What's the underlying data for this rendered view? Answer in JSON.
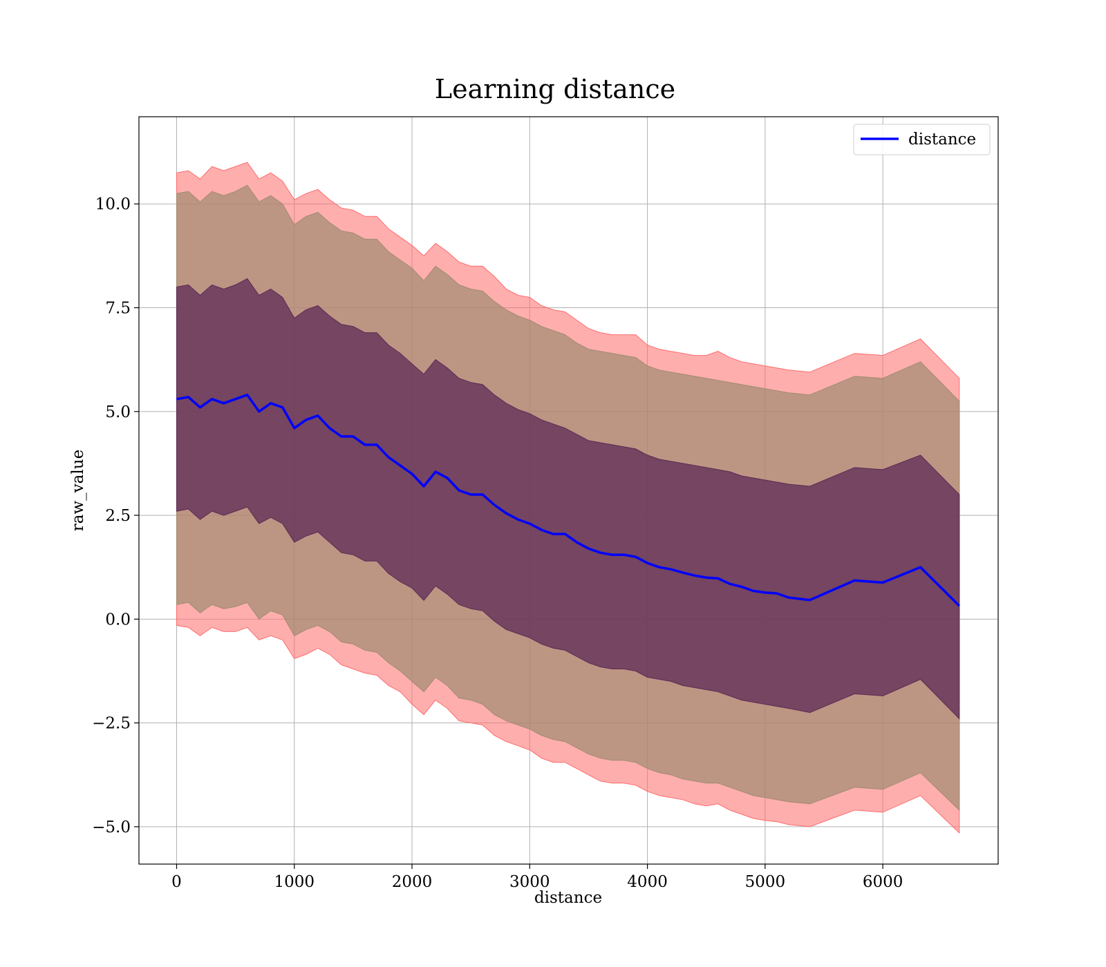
{
  "chart_data": {
    "type": "line",
    "title": "Learning distance",
    "xlabel": "distance",
    "ylabel": "raw_value",
    "xlim": [
      -320,
      6980
    ],
    "ylim": [
      -5.9,
      12.1
    ],
    "x_ticks": [
      0,
      1000,
      2000,
      3000,
      4000,
      5000,
      6000
    ],
    "x_tick_labels": [
      "0",
      "1000",
      "2000",
      "3000",
      "4000",
      "5000",
      "6000"
    ],
    "y_ticks": [
      -5.0,
      -2.5,
      0.0,
      2.5,
      5.0,
      7.5,
      10.0
    ],
    "y_tick_labels": [
      "−5.0",
      "−2.5",
      "0.0",
      "2.5",
      "5.0",
      "7.5",
      "10.0"
    ],
    "grid": true,
    "legend_position": "top-right",
    "colors": {
      "line": "#0000ff",
      "outer_band": "#ff6b6b",
      "middle_band": "#a08b70",
      "inner_band": "#5e2a56",
      "grid": "#b0b0b0"
    },
    "series": [
      {
        "name": "distance",
        "x": [
          0,
          100,
          200,
          300,
          400,
          500,
          600,
          700,
          800,
          900,
          1000,
          1100,
          1200,
          1300,
          1400,
          1500,
          1600,
          1700,
          1800,
          1900,
          2000,
          2100,
          2200,
          2300,
          2400,
          2500,
          2600,
          2700,
          2800,
          2900,
          3000,
          3100,
          3200,
          3300,
          3400,
          3500,
          3600,
          3700,
          3800,
          3900,
          4000,
          4100,
          4200,
          4300,
          4400,
          4500,
          4600,
          4700,
          4800,
          4900,
          5000,
          5100,
          5200,
          5380,
          5760,
          6000,
          6320,
          6650
        ],
        "values": [
          5.3,
          5.35,
          5.1,
          5.3,
          5.2,
          5.3,
          5.4,
          5.0,
          5.2,
          5.1,
          4.6,
          4.8,
          4.9,
          4.6,
          4.4,
          4.4,
          4.2,
          4.2,
          3.9,
          3.7,
          3.5,
          3.2,
          3.55,
          3.4,
          3.1,
          3.0,
          3.0,
          2.75,
          2.55,
          2.4,
          2.3,
          2.15,
          2.05,
          2.05,
          1.85,
          1.7,
          1.6,
          1.55,
          1.55,
          1.5,
          1.35,
          1.25,
          1.2,
          1.12,
          1.05,
          1.0,
          0.98,
          0.85,
          0.78,
          0.68,
          0.64,
          0.62,
          0.52,
          0.46,
          0.93,
          0.88,
          1.25,
          0.32
        ]
      }
    ],
    "bands": [
      {
        "level": "outer",
        "x": [
          0,
          100,
          200,
          300,
          400,
          500,
          600,
          700,
          800,
          900,
          1000,
          1100,
          1200,
          1300,
          1400,
          1500,
          1600,
          1700,
          1800,
          1900,
          2000,
          2100,
          2200,
          2300,
          2400,
          2500,
          2600,
          2700,
          2800,
          2900,
          3000,
          3100,
          3200,
          3300,
          3400,
          3500,
          3600,
          3700,
          3800,
          3900,
          4000,
          4100,
          4200,
          4300,
          4400,
          4500,
          4600,
          4700,
          4800,
          4900,
          5000,
          5100,
          5200,
          5380,
          5760,
          6000,
          6320,
          6650
        ],
        "upper": [
          10.75,
          10.8,
          10.6,
          10.9,
          10.8,
          10.9,
          11.0,
          10.6,
          10.75,
          10.55,
          10.1,
          10.25,
          10.35,
          10.1,
          9.9,
          9.85,
          9.7,
          9.7,
          9.4,
          9.2,
          9.0,
          8.75,
          9.05,
          8.85,
          8.6,
          8.5,
          8.5,
          8.25,
          7.95,
          7.8,
          7.75,
          7.55,
          7.45,
          7.4,
          7.2,
          7.0,
          6.9,
          6.85,
          6.85,
          6.85,
          6.6,
          6.5,
          6.45,
          6.4,
          6.35,
          6.35,
          6.45,
          6.3,
          6.2,
          6.15,
          6.1,
          6.05,
          6.0,
          5.95,
          6.4,
          6.35,
          6.75,
          5.8
        ],
        "lower": [
          -0.15,
          -0.2,
          -0.4,
          -0.2,
          -0.3,
          -0.3,
          -0.2,
          -0.5,
          -0.4,
          -0.5,
          -0.95,
          -0.85,
          -0.7,
          -0.85,
          -1.1,
          -1.2,
          -1.3,
          -1.35,
          -1.6,
          -1.75,
          -2.05,
          -2.3,
          -1.95,
          -2.15,
          -2.45,
          -2.5,
          -2.55,
          -2.8,
          -2.95,
          -3.05,
          -3.15,
          -3.35,
          -3.45,
          -3.45,
          -3.6,
          -3.75,
          -3.9,
          -3.95,
          -3.95,
          -4.0,
          -4.15,
          -4.25,
          -4.3,
          -4.35,
          -4.45,
          -4.5,
          -4.45,
          -4.6,
          -4.7,
          -4.8,
          -4.85,
          -4.88,
          -4.95,
          -5.0,
          -4.6,
          -4.65,
          -4.25,
          -5.15
        ]
      },
      {
        "level": "middle",
        "x": [
          0,
          100,
          200,
          300,
          400,
          500,
          600,
          700,
          800,
          900,
          1000,
          1100,
          1200,
          1300,
          1400,
          1500,
          1600,
          1700,
          1800,
          1900,
          2000,
          2100,
          2200,
          2300,
          2400,
          2500,
          2600,
          2700,
          2800,
          2900,
          3000,
          3100,
          3200,
          3300,
          3400,
          3500,
          3600,
          3700,
          3800,
          3900,
          4000,
          4100,
          4200,
          4300,
          4400,
          4500,
          4600,
          4700,
          4800,
          4900,
          5000,
          5100,
          5200,
          5380,
          5760,
          6000,
          6320,
          6650
        ],
        "upper": [
          10.25,
          10.3,
          10.05,
          10.3,
          10.2,
          10.3,
          10.45,
          10.05,
          10.2,
          10.0,
          9.5,
          9.7,
          9.8,
          9.55,
          9.35,
          9.3,
          9.15,
          9.15,
          8.85,
          8.65,
          8.45,
          8.15,
          8.5,
          8.3,
          8.05,
          7.95,
          7.9,
          7.65,
          7.45,
          7.3,
          7.2,
          7.05,
          6.95,
          6.85,
          6.65,
          6.5,
          6.45,
          6.4,
          6.35,
          6.3,
          6.1,
          6.0,
          5.95,
          5.9,
          5.85,
          5.8,
          5.75,
          5.7,
          5.65,
          5.6,
          5.55,
          5.5,
          5.45,
          5.4,
          5.85,
          5.8,
          6.2,
          5.25
        ],
        "lower": [
          0.35,
          0.4,
          0.15,
          0.35,
          0.25,
          0.3,
          0.4,
          0.0,
          0.2,
          0.1,
          -0.4,
          -0.25,
          -0.15,
          -0.3,
          -0.55,
          -0.6,
          -0.75,
          -0.8,
          -1.05,
          -1.25,
          -1.5,
          -1.75,
          -1.4,
          -1.6,
          -1.9,
          -1.95,
          -2.05,
          -2.3,
          -2.45,
          -2.55,
          -2.65,
          -2.8,
          -2.9,
          -2.95,
          -3.1,
          -3.25,
          -3.35,
          -3.4,
          -3.4,
          -3.45,
          -3.6,
          -3.7,
          -3.75,
          -3.85,
          -3.9,
          -3.95,
          -3.95,
          -4.05,
          -4.15,
          -4.25,
          -4.3,
          -4.35,
          -4.4,
          -4.45,
          -4.05,
          -4.1,
          -3.7,
          -4.6
        ]
      },
      {
        "level": "inner",
        "x": [
          0,
          100,
          200,
          300,
          400,
          500,
          600,
          700,
          800,
          900,
          1000,
          1100,
          1200,
          1300,
          1400,
          1500,
          1600,
          1700,
          1800,
          1900,
          2000,
          2100,
          2200,
          2300,
          2400,
          2500,
          2600,
          2700,
          2800,
          2900,
          3000,
          3100,
          3200,
          3300,
          3400,
          3500,
          3600,
          3700,
          3800,
          3900,
          4000,
          4100,
          4200,
          4300,
          4400,
          4500,
          4600,
          4700,
          4800,
          4900,
          5000,
          5100,
          5200,
          5380,
          5760,
          6000,
          6320,
          6650
        ],
        "upper": [
          8.0,
          8.05,
          7.8,
          8.05,
          7.95,
          8.05,
          8.2,
          7.8,
          7.95,
          7.75,
          7.25,
          7.45,
          7.55,
          7.3,
          7.1,
          7.05,
          6.9,
          6.9,
          6.6,
          6.4,
          6.15,
          5.9,
          6.25,
          6.05,
          5.8,
          5.7,
          5.65,
          5.4,
          5.2,
          5.05,
          4.95,
          4.8,
          4.7,
          4.6,
          4.45,
          4.3,
          4.25,
          4.2,
          4.15,
          4.1,
          3.95,
          3.85,
          3.8,
          3.75,
          3.7,
          3.65,
          3.6,
          3.55,
          3.45,
          3.4,
          3.35,
          3.3,
          3.25,
          3.2,
          3.65,
          3.6,
          3.95,
          3.0
        ],
        "lower": [
          2.6,
          2.65,
          2.4,
          2.6,
          2.5,
          2.6,
          2.7,
          2.3,
          2.45,
          2.3,
          1.85,
          2.0,
          2.1,
          1.85,
          1.6,
          1.55,
          1.4,
          1.4,
          1.1,
          0.9,
          0.75,
          0.45,
          0.8,
          0.6,
          0.35,
          0.25,
          0.2,
          -0.05,
          -0.25,
          -0.35,
          -0.45,
          -0.6,
          -0.7,
          -0.75,
          -0.9,
          -1.05,
          -1.15,
          -1.2,
          -1.2,
          -1.25,
          -1.4,
          -1.45,
          -1.5,
          -1.6,
          -1.65,
          -1.7,
          -1.75,
          -1.85,
          -1.95,
          -2.0,
          -2.05,
          -2.1,
          -2.15,
          -2.25,
          -1.8,
          -1.85,
          -1.45,
          -2.4
        ]
      }
    ]
  }
}
